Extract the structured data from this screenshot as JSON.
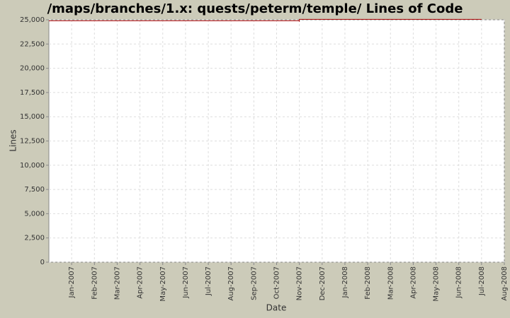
{
  "chart_data": {
    "type": "line",
    "title": "/maps/branches/1.x: quests/peterm/temple/ Lines of Code",
    "x_label": "Date",
    "y_label": "Lines",
    "x": [
      "2006-12",
      "2007-11",
      "2007-11",
      "2007-11",
      "2008-07"
    ],
    "series": [
      {
        "name": "Lines",
        "color": "#aa0000",
        "values": [
          24900,
          24900,
          24800,
          25050,
          25050
        ]
      }
    ],
    "xlim": [
      "2006-12",
      "2008-08"
    ],
    "xticks": [
      {
        "value": "2007-01",
        "label": "Jan-2007"
      },
      {
        "value": "2007-02",
        "label": "Feb-2007"
      },
      {
        "value": "2007-03",
        "label": "Mar-2007"
      },
      {
        "value": "2007-04",
        "label": "Apr-2007"
      },
      {
        "value": "2007-05",
        "label": "May-2007"
      },
      {
        "value": "2007-06",
        "label": "Jun-2007"
      },
      {
        "value": "2007-07",
        "label": "Jul-2007"
      },
      {
        "value": "2007-08",
        "label": "Aug-2007"
      },
      {
        "value": "2007-09",
        "label": "Sep-2007"
      },
      {
        "value": "2007-10",
        "label": "Oct-2007"
      },
      {
        "value": "2007-11",
        "label": "Nov-2007"
      },
      {
        "value": "2007-12",
        "label": "Dec-2007"
      },
      {
        "value": "2008-01",
        "label": "Jan-2008"
      },
      {
        "value": "2008-02",
        "label": "Feb-2008"
      },
      {
        "value": "2008-03",
        "label": "Mar-2008"
      },
      {
        "value": "2008-04",
        "label": "Apr-2008"
      },
      {
        "value": "2008-05",
        "label": "May-2008"
      },
      {
        "value": "2008-06",
        "label": "Jun-2008"
      },
      {
        "value": "2008-07",
        "label": "Jul-2008"
      },
      {
        "value": "2008-08",
        "label": "Aug-2008"
      }
    ],
    "ylim": [
      0,
      25000
    ],
    "yticks": [
      0,
      {
        "value": 2500,
        "label": "2,500"
      },
      {
        "value": 5000,
        "label": "5,000"
      },
      {
        "value": 7500,
        "label": "7,500"
      },
      {
        "value": 10000,
        "label": "10,000"
      },
      {
        "value": 12500,
        "label": "12,500"
      },
      {
        "value": 15000,
        "label": "15,000"
      },
      {
        "value": 17500,
        "label": "17,500"
      },
      {
        "value": 20000,
        "label": "20,000"
      },
      {
        "value": 22500,
        "label": "22,500"
      },
      {
        "value": 25000,
        "label": "25,000"
      }
    ],
    "grid": true
  }
}
